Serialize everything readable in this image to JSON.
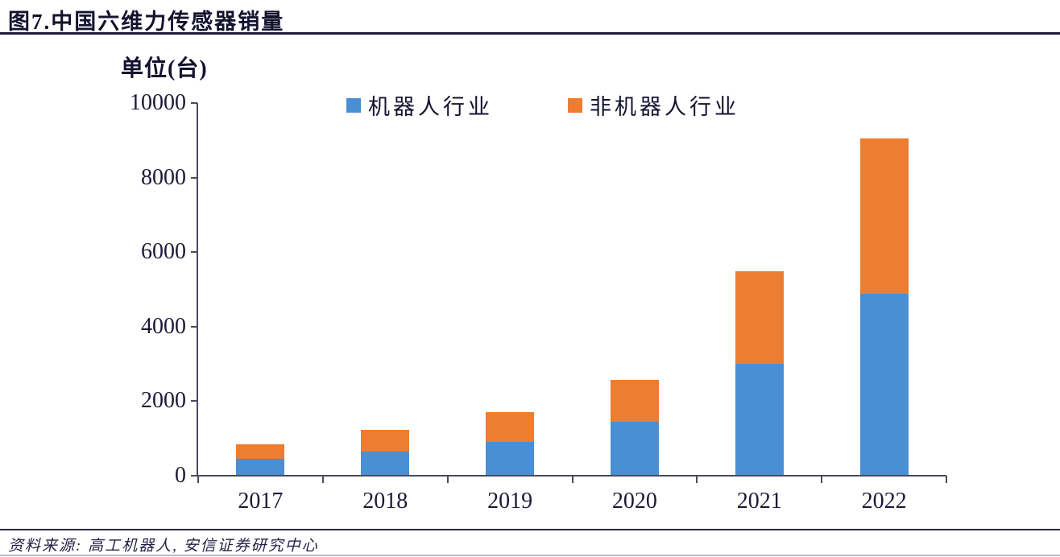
{
  "header": {
    "title": "图7.中国六维力传感器销量"
  },
  "footer": {
    "source": "资料来源: 高工机器人, 安信证券研究中心"
  },
  "colors": {
    "robot_blue": "#4A8FD3",
    "non_robot_orange": "#ED7D31",
    "axis": "#4A4A5E",
    "text": "#1B1B38",
    "title_rule": "#1C1C3A",
    "footer_rule": "#2A2A3A",
    "bottom_rule": "#BDBDC8"
  },
  "chart_data": {
    "type": "bar",
    "stacked": true,
    "title": "图7.中国六维力传感器销量",
    "unit_label": "单位(台)",
    "xlabel": "",
    "ylabel": "单位(台)",
    "categories": [
      "2017",
      "2018",
      "2019",
      "2020",
      "2021",
      "2022"
    ],
    "series": [
      {
        "name": "机器人行业",
        "color": "#4A8FD3",
        "values": [
          450,
          650,
          900,
          1450,
          3000,
          4880
        ]
      },
      {
        "name": "非机器人行业",
        "color": "#ED7D31",
        "values": [
          400,
          580,
          800,
          1120,
          2480,
          4170
        ]
      }
    ],
    "totals": [
      850,
      1230,
      1700,
      2570,
      5480,
      9050
    ],
    "ylim": [
      0,
      10000
    ],
    "yticks": [
      0,
      2000,
      4000,
      6000,
      8000,
      10000
    ],
    "legend_position": "top",
    "grid": false
  }
}
